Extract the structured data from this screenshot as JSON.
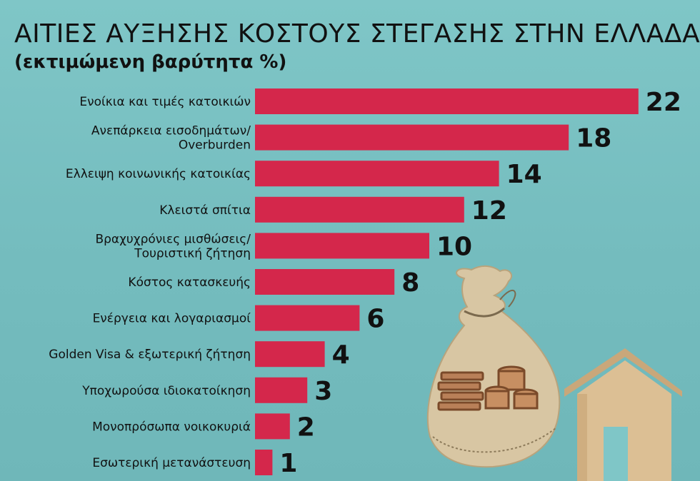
{
  "chart_data": {
    "type": "bar",
    "orientation": "horizontal",
    "title": "ΑΙΤΙΕΣ ΑΥΞΗΣΗΣ ΚΟΣΤΟΥΣ ΣΤΕΓΑΣΗΣ ΣΤΗΝ ΕΛΛΑΔΑ",
    "subtitle": "(εκτιμώμενη βαρύτητα %)",
    "categories": [
      [
        "Ενοίκια και τιμές κατοικιών"
      ],
      [
        "Ανεπάρκεια εισοδημάτων/",
        "Overburden"
      ],
      [
        "Ελλειψη κοινωνικής κατοικίας"
      ],
      [
        "Κλειστά σπίτια"
      ],
      [
        "Βραχυχρόνιες μισθώσεις/",
        "Τουριστική ζήτηση"
      ],
      [
        "Κόστος κατασκευής"
      ],
      [
        "Ενέργεια και λογαριασμοί"
      ],
      [
        "Golden Visa & εξωτερική ζήτηση"
      ],
      [
        "Υποχωρούσα ιδιοκατοίκηση"
      ],
      [
        "Μονοπρόσωπα νοικοκυριά"
      ],
      [
        "Εσωτερική μετανάστευση"
      ]
    ],
    "values": [
      22,
      18,
      14,
      12,
      10,
      8,
      6,
      4,
      3,
      2,
      1
    ],
    "bar_color": "#d4274b",
    "grid": false,
    "legend": false
  },
  "decoration": {
    "illustration": [
      "money-bag-icon",
      "coins-icon",
      "wooden-house-icon"
    ]
  }
}
